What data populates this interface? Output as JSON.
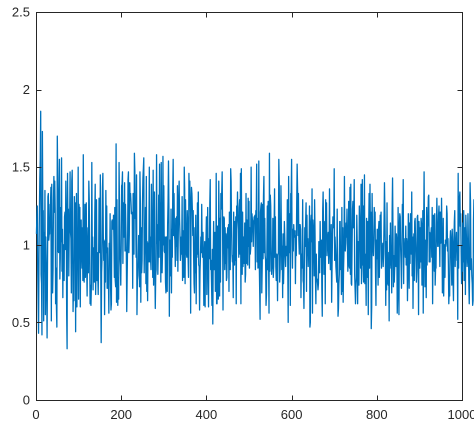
{
  "chart_data": {
    "type": "line",
    "title": "",
    "xlabel": "",
    "ylabel": "",
    "xlim": [
      0,
      1000
    ],
    "ylim": [
      0,
      2.5
    ],
    "xticks": [
      0,
      200,
      400,
      600,
      800,
      1000
    ],
    "xtick_labels": [
      "0",
      "200",
      "400",
      "600",
      "800",
      "1000"
    ],
    "yticks": [
      0,
      0.5,
      1,
      1.5,
      2,
      2.5
    ],
    "ytick_labels": [
      "0",
      "0.5",
      "1",
      "1.5",
      "2",
      "2.5"
    ],
    "grid": false,
    "legend": "none",
    "colors": {
      "line": "#0072BD",
      "axes": "#262626",
      "background": "#ffffff"
    },
    "series": [
      {
        "x_start": 1,
        "x_step": 1,
        "values": [
          1.07,
          1.17,
          1.25,
          0.84,
          0.64,
          0.43,
          0.94,
          1.21,
          1.43,
          1.55,
          1.86,
          0.81,
          0.75,
          0.42,
          1.73,
          1.22,
          1.22,
          0.51,
          1.08,
          0.83,
          1.35,
          0.55,
          1.05,
          0.88,
          0.72,
          0.4,
          0.87,
          1.31,
          1.33,
          1.03,
          1.07,
          1.07,
          1.26,
          1.26,
          1.37,
          0.51,
          1.39,
          0.86,
          0.69,
          0.84,
          1.27,
          1.44,
          1.21,
          1.41,
          1.23,
          0.62,
          0.85,
          0.59,
          0.47,
          1.7,
          1.43,
          0.96,
          0.95,
          1.29,
          1.55,
          0.78,
          0.91,
          1.24,
          1.02,
          1.56,
          0.83,
          1.1,
          0.66,
          1.0,
          0.91,
          0.77,
          1.18,
          1.21,
          0.97,
          1.41,
          1.21,
          0.55,
          0.33,
          1.46,
          1.15,
          1.23,
          0.8,
          1.1,
          1.14,
          1.47,
          1.08,
          1.04,
          0.69,
          1.41,
          1.48,
          1.04,
          0.57,
          0.74,
          0.64,
          1.31,
          1.09,
          1.27,
          0.44,
          1.11,
          1.33,
          0.6,
          0.94,
          0.88,
          1.5,
          0.65,
          1.26,
          1.16,
          1.24,
          0.6,
          1.14,
          1.16,
          0.95,
          0.85,
          1.11,
          0.77,
          1.58,
          1.06,
          0.76,
          0.85,
          1.26,
          0.79,
          1.02,
          1.27,
          0.86,
          0.67,
          0.98,
          1.11,
          0.82,
          1.41,
          1.29,
          0.93,
          0.62,
          0.74,
          0.61,
          0.73,
          1.53,
          1.01,
          1.05,
          0.71,
          0.98,
          0.79,
          0.76,
          1.2,
          1.39,
          0.68,
          0.88,
          1.29,
          0.77,
          0.95,
          0.82,
          0.68,
          0.91,
          1.3,
          1.04,
          0.95,
          1.45,
          0.84,
          0.37,
          0.82,
          0.92,
          1.37,
          1.46,
          1.06,
          0.9,
          1.02,
          0.55,
          1.03,
          0.76,
          1.35,
          0.95,
          1.25,
          0.72,
          0.98,
          0.72,
          0.79,
          0.56,
          1.01,
          0.89,
          1.2,
          0.75,
          0.58,
          0.62,
          1.15,
          1.16,
          1.14,
          1.1,
          1.19,
          1.02,
          0.79,
          1.24,
          0.77,
          0.73,
          1.65,
          0.63,
          1.29,
          0.79,
          0.61,
          0.79,
          0.65,
          1.53,
          1.24,
          0.93,
          0.86,
          0.74,
          0.98,
          1.38,
          1.39,
          1.47,
          0.88,
          1.27,
          1.12,
          1.05,
          1.4,
          0.96,
          1.26,
          1.09,
          0.96,
          0.57,
          0.79,
          0.99,
          1.42,
          1.47,
          0.95,
          1.06,
          1.4,
          1.29,
          1.33,
          1.27,
          1.2,
          1.21,
          1.2,
          0.72,
          1.33,
          1.12,
          0.94,
          1.59,
          1.48,
          1.17,
          1.23,
          0.92,
          1.45,
          0.55,
          0.77,
          0.8,
          0.91,
          1.06,
          1.02,
          0.73,
          1.47,
          1.27,
          0.63,
          1.11,
          0.82,
          0.9,
          1.27,
          1.43,
          1.49,
          1.56,
          0.82,
          1.06,
          0.96,
          1.24,
          0.75,
          1.44,
          0.7,
          1.02,
          0.64,
          1.01,
          0.89,
          1.04,
          1.5,
          0.89,
          1.05,
          0.91,
          0.84,
          1.39,
          1.08,
          1.09,
          0.79,
          1.48,
          0.74,
          0.98,
          1.34,
          0.86,
          0.59,
          0.8,
          0.84,
          1.58,
          1.01,
          1.13,
          0.81,
          0.96,
          1.32,
          0.92,
          1.52,
          1.03,
          1.27,
          0.76,
          1.53,
          0.97,
          0.82,
          0.96,
          1.57,
          1.0,
          1.38,
          0.96,
          0.95,
          1.05,
          0.76,
          0.69,
          1.05,
          1.05,
          0.7,
          1.13,
          1.28,
          1.54,
          1.25,
          0.54,
          1.03,
          0.8,
          0.85,
          1.23,
          0.69,
          1.1,
          0.92,
          1.35,
          1.55,
          1.06,
          1.33,
          1.07,
          1.03,
          0.86,
          1.17,
          0.99,
          1.18,
          0.9,
          1.38,
          0.83,
          1.06,
          1.3,
          1.41,
          1.17,
          1.06,
          0.9,
          0.95,
          1.05,
          0.94,
          1.31,
          0.77,
          1.09,
          0.93,
          0.79,
          1.5,
          1.36,
          0.75,
          1.29,
          1.06,
          0.95,
          0.92,
          1.22,
          1.13,
          0.92,
          0.79,
          1.46,
          1.32,
          1.41,
          1.21,
          0.56,
          1.22,
          1.37,
          1.33,
          1.23,
          1.06,
          1.22,
          0.93,
          0.75,
          0.69,
          1.11,
          0.82,
          1.19,
          0.62,
          1.05,
          0.92,
          1.27,
          0.94,
          1.34,
          0.87,
          0.86,
          0.58,
          0.83,
          0.92,
          1.05,
          0.95,
          1.26,
          1.02,
          0.92,
          1.08,
          0.91,
          0.61,
          0.91,
          1.02,
          0.6,
          1.01,
          1.02,
          1.18,
          0.68,
          0.99,
          1.24,
          0.89,
          0.6,
          1.04,
          0.91,
          1.27,
          1.42,
          0.84,
          0.9,
          0.76,
          0.61,
          0.97,
          0.49,
          0.91,
          1.15,
          0.84,
          0.93,
          1.08,
          0.7,
          0.71,
          1.46,
          0.62,
          0.62,
          1.12,
          0.73,
          0.65,
          1.41,
          1.14,
          0.67,
          1.17,
          0.76,
          1.33,
          1.23,
          1.34,
          1.47,
          1.13,
          0.58,
          1.17,
          1.18,
          1.17,
          0.84,
          1.11,
          0.88,
          1.07,
          0.77,
          0.79,
          1.05,
          1.11,
          0.98,
          1.13,
          0.7,
          1.21,
          1.16,
          0.84,
          1.49,
          1.41,
          1.13,
          0.94,
          0.89,
          0.93,
          0.66,
          1.21,
          0.92,
          0.87,
          1.15,
          0.9,
          1.18,
          0.62,
          1.25,
          1.16,
          1.34,
          1.15,
          1.1,
          0.92,
          1.24,
          1.29,
          0.94,
          1.46,
          0.62,
          1.49,
          0.98,
          0.81,
          1.21,
          0.86,
          1.05,
          0.96,
          0.88,
          1.14,
          0.76,
          0.81,
          1.33,
          0.88,
          1.16,
          1.14,
          0.87,
          1.3,
          0.99,
          1.28,
          0.85,
          1.11,
          0.94,
          0.98,
          1.5,
          1.02,
          1.2,
          1.16,
          1.15,
          0.99,
          1.13,
          1.18,
          1.18,
          1.19,
          0.84,
          1.22,
          1.17,
          1.52,
          0.89,
          1.17,
          0.85,
          0.86,
          1.54,
          0.91,
          0.72,
          0.52,
          1.21,
          1.25,
          1.27,
          0.69,
          0.87,
          1.26,
          0.91,
          1.31,
          1.44,
          0.95,
          1.17,
          0.93,
          0.9,
          0.61,
          0.68,
          0.95,
          1.25,
          0.84,
          1.28,
          0.9,
          0.56,
          1.59,
          0.83,
          1.32,
          1.25,
          0.99,
          0.81,
          0.87,
          0.85,
          1.17,
          0.79,
          0.86,
          1.12,
          1.36,
          0.92,
          1.18,
          0.86,
          0.77,
          0.94,
          0.91,
          0.64,
          0.93,
          0.95,
          1.55,
          1.4,
          0.76,
          0.84,
          1.0,
          1.38,
          1.09,
          0.84,
          0.99,
          0.66,
          1.07,
          0.75,
          0.89,
          1.15,
          1.05,
          0.94,
          0.86,
          0.99,
          0.93,
          0.97,
          1.29,
          0.87,
          0.5,
          1.44,
          1.02,
          0.95,
          1.2,
          0.61,
          1.33,
          1.31,
          1.55,
          1.06,
          0.85,
          1.1,
          0.96,
          1.13,
          1.05,
          1.07,
          1.09,
          0.75,
          1.06,
          0.93,
          1.27,
          1.52,
          1.37,
          1.06,
          1.33,
          1.03,
          0.94,
          1.13,
          1.13,
          1.1,
          0.66,
          0.94,
          0.85,
          0.96,
          1.29,
          0.77,
          0.75,
          0.59,
          0.89,
          1.11,
          0.99,
          1.15,
          1.27,
          0.7,
          1.19,
          0.93,
          1.04,
          0.86,
          0.99,
          0.95,
          1.25,
          0.47,
          0.5,
          1.14,
          1.19,
          1.02,
          1.36,
          0.56,
          1.16,
          1.1,
          1.03,
          0.8,
          1.29,
          1.08,
          0.78,
          0.62,
          0.94,
          0.77,
          0.78,
          0.75,
          0.71,
          0.75,
          1.02,
          0.96,
          0.82,
          1.15,
          0.92,
          1.02,
          1.03,
          0.71,
          0.54,
          1.22,
          1.34,
          1.09,
          0.81,
          1.08,
          1.15,
          0.62,
          1.29,
          1.09,
          1.27,
          0.93,
          0.99,
          1.04,
          1.08,
          0.88,
          0.97,
          1.36,
          1.01,
          0.84,
          0.89,
          1.13,
          0.63,
          0.87,
          1.05,
          1.18,
          1.13,
          1.11,
          1.49,
          0.9,
          1.05,
          0.97,
          0.86,
          0.81,
          0.76,
          1.23,
          0.84,
          0.54,
          0.59,
          0.75,
          0.81,
          1.15,
          1.15,
          0.84,
          0.94,
          0.68,
          1.24,
          0.7,
          1.11,
          0.63,
          0.85,
          0.97,
          1.44,
          1.01,
          0.96,
          1.01,
          1.14,
          1.05,
          1.23,
          1.0,
          0.83,
          0.94,
          1.28,
          0.87,
          0.85,
          1.37,
          0.81,
          1.39,
          0.75,
          0.74,
          1.0,
          1.23,
          1.28,
          1.11,
          1.18,
          1.42,
          0.81,
          0.72,
          0.62,
          0.74,
          0.79,
          1.19,
          1.03,
          0.62,
          1.02,
          0.79,
          0.74,
          1.25,
          1.12,
          1.08,
          0.85,
          1.39,
          0.75,
          0.84,
          1.42,
          0.87,
          1.25,
          0.76,
          0.93,
          1.45,
          0.75,
          0.94,
          0.87,
          0.61,
          1.17,
          0.84,
          0.79,
          1.15,
          0.55,
          1.12,
          1.33,
          0.85,
          1.39,
          1.08,
          1.21,
          0.46,
          0.6,
          1.33,
          1.05,
          0.98,
          0.93,
          1.03,
          1.24,
          1.16,
          1.21,
          0.82,
          0.61,
          1.03,
          0.91,
          1.1,
          0.97,
          0.74,
          1.09,
          1.15,
          0.79,
          0.97,
          1.19,
          1.15,
          1.21,
          0.85,
          0.95,
          0.96,
          1.01,
          0.86,
          0.94,
          1.15,
          1.4,
          1.21,
          0.98,
          0.61,
          1.02,
          0.71,
          1.27,
          0.82,
          0.75,
          0.74,
          0.95,
          0.51,
          1.06,
          0.87,
          1.14,
          0.85,
          0.96,
          0.69,
          1.22,
          1.43,
          1.08,
          0.73,
          0.93,
          0.76,
          0.85,
          1.12,
          0.93,
          0.86,
          1.07,
          1.03,
          0.56,
          0.69,
          1.24,
          0.97,
          0.55,
          1.11,
          1.2,
          1.18,
          0.97,
          0.87,
          0.72,
          0.94,
          1.26,
          1.11,
          1.42,
          0.75,
          1.04,
          0.97,
          0.99,
          0.92,
          1.12,
          0.87,
          1.04,
          1.0,
          0.64,
          0.84,
          1.2,
          0.94,
          0.72,
          1.14,
          0.88,
          1.2,
          0.98,
          0.94,
          1.34,
          0.8,
          1.05,
          0.59,
          0.95,
          1.07,
          0.77,
          1.15,
          1.17,
          1.03,
          0.9,
          0.76,
          0.83,
          1.18,
          1.19,
          1.03,
          0.55,
          1.15,
          1.05,
          0.85,
          1.11,
          0.89,
          1.17,
          1.13,
          0.74,
          0.76,
          1.22,
          0.56,
          1.11,
          1.47,
          1.06,
          0.73,
          0.98,
          1.03,
          0.66,
          1.24,
          0.87,
          1.11,
          1.15,
          1.31,
          1.32,
          0.89,
          1.08,
          0.89,
          1.05,
          1.07,
          1.11,
          0.92,
          1.24,
          0.62,
          0.96,
          1.19,
          1.16,
          0.83,
          1.2,
          0.74,
          0.85,
          0.85,
          1.12,
          1.3,
          1.09,
          0.99,
          0.99,
          1.19,
          1.25,
          1.05,
          0.86,
          1.21,
          1.01,
          1.06,
          1.3,
          1.06,
          0.69,
          0.78,
          1.17,
          0.67,
          0.88,
          1.0,
          0.79,
          1.03,
          0.99,
          1.02,
          1.25,
          1.2,
          0.96,
          1.04,
          0.88,
          0.62,
          0.7,
          0.67,
          1.02,
          1.09,
          1.04,
          0.88,
          0.74,
          1.1,
          1.02,
          0.77,
          0.64,
          1.01,
          1.15,
          1.22,
          0.86,
          1.02,
          1.0,
          1.08,
          0.9,
          0.91,
          0.52,
          1.46,
          0.85,
          1.21,
          1.3,
          1.34,
          1.12,
          1.2,
          0.96,
          0.75,
          0.99,
          0.83,
          1.14,
          0.89,
          1.22,
          0.77,
          0.97,
          1.11,
          0.68,
          1.19,
          1.09,
          0.96,
          0.86,
          0.92,
          1.2,
          1.02,
          0.76,
          0.62,
          0.86,
          1.4,
          1.27,
          0.84,
          0.91,
          0.8,
          0.75,
          0.61,
          0.64,
          1.16,
          1.29,
          1.08,
          0.89,
          1.1,
          1.26,
          0.77,
          0.69,
          0.74,
          0.71,
          0.85,
          0.7,
          0.92,
          1.12,
          0.93,
          1.06,
          1.11,
          1.21,
          0.99,
          0.65,
          1.04,
          0.77,
          0.99,
          1.04,
          0.8,
          1.46,
          1.13,
          1.34,
          1.32,
          1.05,
          0.9,
          1.19,
          1.09,
          1.28,
          0.61,
          0.96,
          0.85,
          0.98,
          1.22,
          1.09,
          0.89,
          1.0
        ]
      }
    ]
  }
}
